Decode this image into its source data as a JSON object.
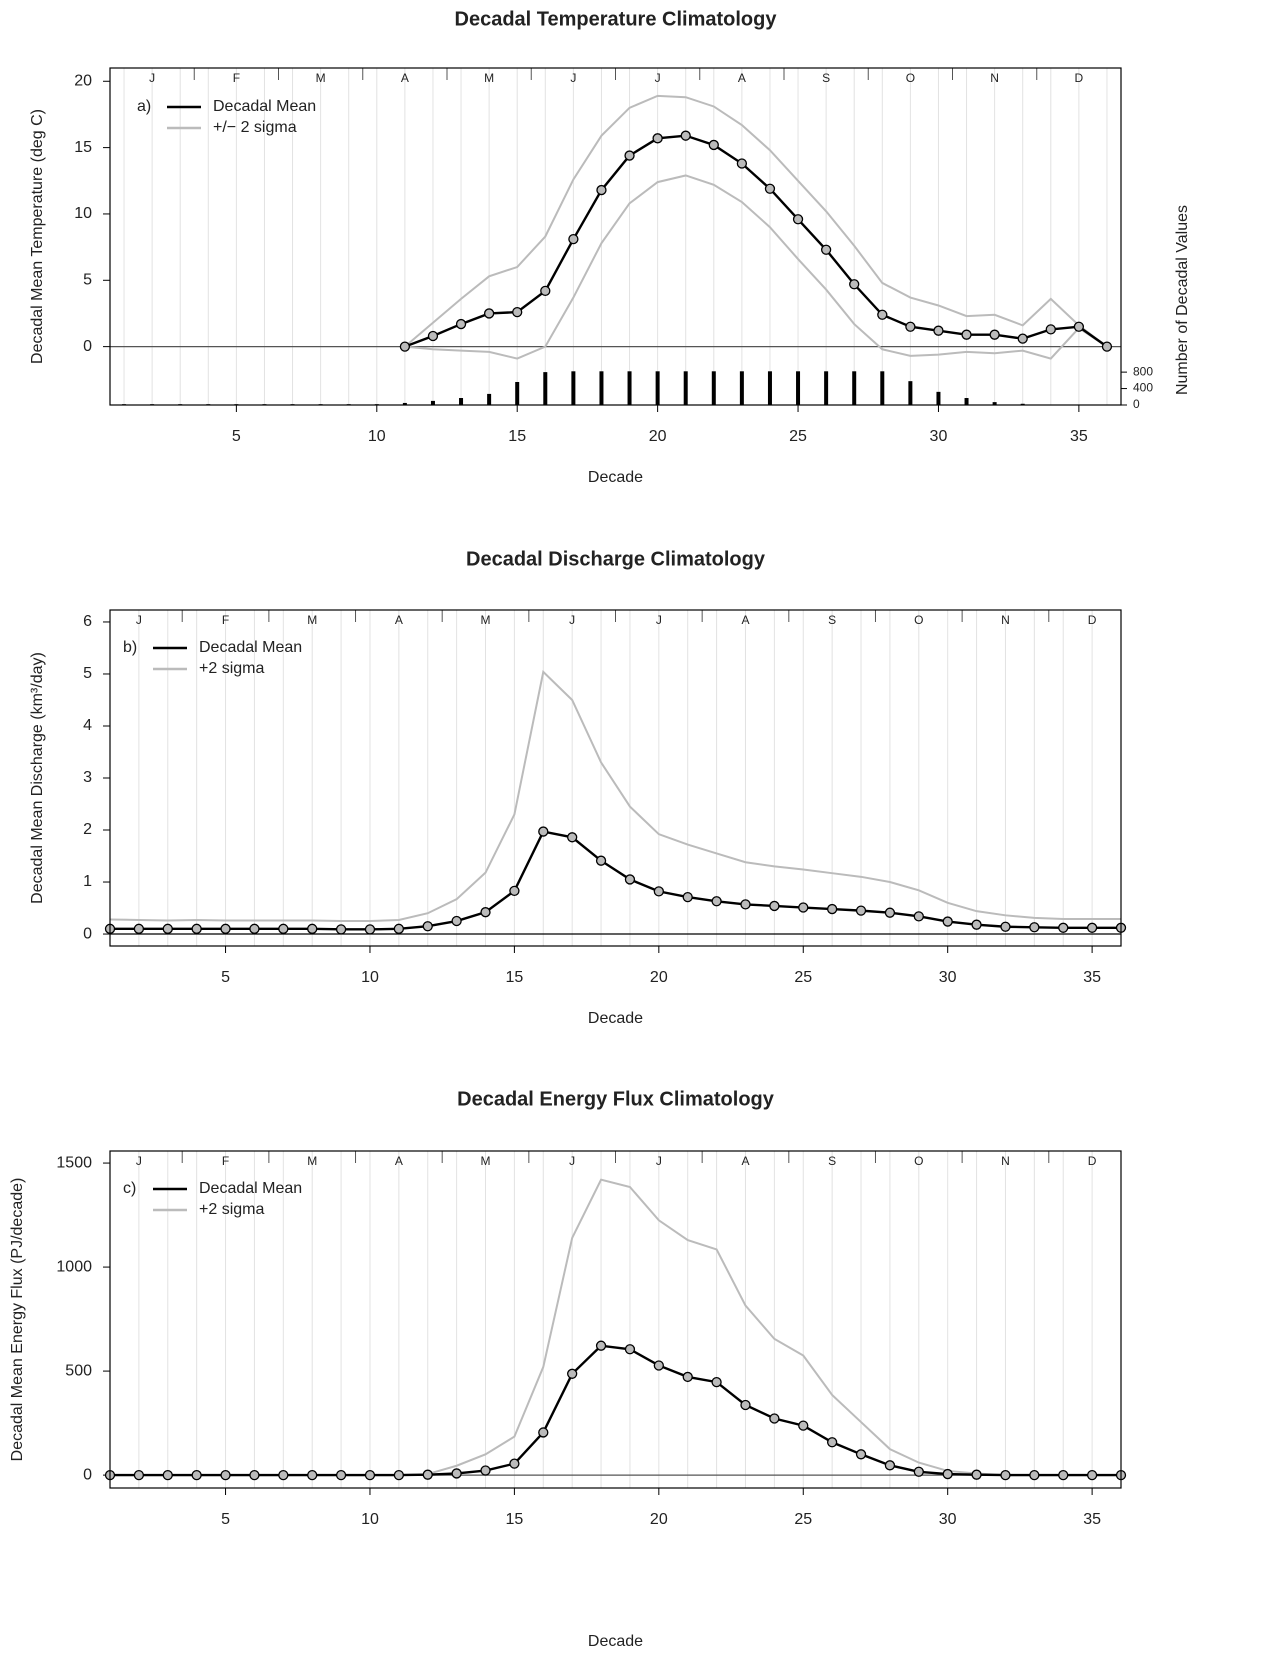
{
  "chart_data": [
    {
      "type": "line",
      "title": "Decadal Temperature Climatology",
      "panel_label": "a)",
      "xlabel": "Decade",
      "ylabel": "Decadal Mean Temperature (deg C)",
      "y2label": "Number of Decadal Values",
      "months": [
        "J",
        "F",
        "M",
        "A",
        "M",
        "J",
        "J",
        "A",
        "S",
        "O",
        "N",
        "D"
      ],
      "x": [
        1,
        2,
        3,
        4,
        5,
        6,
        7,
        8,
        9,
        10,
        11,
        12,
        13,
        14,
        15,
        16,
        17,
        18,
        19,
        20,
        21,
        22,
        23,
        24,
        25,
        26,
        27,
        28,
        29,
        30,
        31,
        32,
        33,
        34,
        35,
        36
      ],
      "xlim": [
        0.5,
        36.5
      ],
      "xticks": [
        5,
        10,
        15,
        20,
        25,
        30,
        35
      ],
      "ylim": [
        -4.4,
        21
      ],
      "yticks": [
        0,
        5,
        10,
        15,
        20
      ],
      "hline": 0,
      "y2lim": [
        0,
        8200
      ],
      "y2ticks": [
        0,
        400,
        800
      ],
      "counts": [
        20,
        20,
        20,
        20,
        20,
        20,
        20,
        20,
        20,
        20,
        50,
        100,
        170,
        270,
        560,
        800,
        820,
        820,
        820,
        820,
        820,
        820,
        820,
        820,
        820,
        820,
        820,
        820,
        580,
        320,
        170,
        70,
        30,
        null,
        null,
        null
      ],
      "series": [
        {
          "name": "Decadal Mean",
          "color": "#000000",
          "markers": true,
          "values": [
            null,
            null,
            null,
            null,
            null,
            null,
            null,
            null,
            null,
            null,
            0.0,
            0.8,
            1.7,
            2.5,
            2.6,
            4.2,
            8.1,
            11.8,
            14.4,
            15.7,
            15.9,
            15.2,
            13.8,
            11.9,
            9.6,
            7.3,
            4.7,
            2.4,
            1.5,
            1.2,
            0.9,
            0.9,
            0.6,
            1.3,
            1.5,
            0.0
          ]
        },
        {
          "name": "+/− 2 sigma",
          "color": "#bbbbbb",
          "values": [
            null,
            null,
            null,
            null,
            null,
            null,
            null,
            null,
            null,
            null,
            0.0,
            1.8,
            3.6,
            5.3,
            6.0,
            8.3,
            12.6,
            15.9,
            18.0,
            18.9,
            18.8,
            18.1,
            16.7,
            14.8,
            12.5,
            10.2,
            7.6,
            4.8,
            3.7,
            3.1,
            2.3,
            2.4,
            1.6,
            3.6,
            1.6,
            0.0
          ],
          "lower": [
            null,
            null,
            null,
            null,
            null,
            null,
            null,
            null,
            null,
            null,
            0.0,
            -0.2,
            -0.3,
            -0.4,
            -0.9,
            0.0,
            3.7,
            7.8,
            10.8,
            12.4,
            12.9,
            12.2,
            10.9,
            9.0,
            6.6,
            4.3,
            1.7,
            -0.2,
            -0.7,
            -0.6,
            -0.4,
            -0.5,
            -0.3,
            -0.9,
            1.4,
            0.0
          ]
        }
      ]
    },
    {
      "type": "line",
      "title": "Decadal Discharge Climatology",
      "panel_label": "b)",
      "xlabel": "Decade",
      "ylabel": "Decadal Mean Discharge (km³/day)",
      "months": [
        "J",
        "F",
        "M",
        "A",
        "M",
        "J",
        "J",
        "A",
        "S",
        "O",
        "N",
        "D"
      ],
      "x": [
        1,
        2,
        3,
        4,
        5,
        6,
        7,
        8,
        9,
        10,
        11,
        12,
        13,
        14,
        15,
        16,
        17,
        18,
        19,
        20,
        21,
        22,
        23,
        24,
        25,
        26,
        27,
        28,
        29,
        30,
        31,
        32,
        33,
        34,
        35,
        36
      ],
      "xlim": [
        1,
        36
      ],
      "xticks": [
        5,
        10,
        15,
        20,
        25,
        30,
        35
      ],
      "ylim": [
        -0.23,
        6.23
      ],
      "yticks": [
        0,
        1,
        2,
        3,
        4,
        5,
        6
      ],
      "hline": 0,
      "series": [
        {
          "name": "Decadal Mean",
          "color": "#000000",
          "markers": true,
          "values": [
            0.1,
            0.1,
            0.1,
            0.1,
            0.1,
            0.1,
            0.1,
            0.1,
            0.09,
            0.09,
            0.1,
            0.15,
            0.25,
            0.42,
            0.83,
            1.97,
            1.86,
            1.41,
            1.05,
            0.82,
            0.71,
            0.63,
            0.57,
            0.54,
            0.51,
            0.48,
            0.45,
            0.41,
            0.34,
            0.24,
            0.18,
            0.14,
            0.13,
            0.12,
            0.12,
            0.12
          ]
        },
        {
          "name": "+2 sigma",
          "color": "#bbbbbb",
          "values": [
            0.28,
            0.27,
            0.26,
            0.27,
            0.26,
            0.26,
            0.26,
            0.26,
            0.25,
            0.25,
            0.27,
            0.4,
            0.67,
            1.18,
            2.3,
            5.04,
            4.5,
            3.3,
            2.45,
            1.92,
            1.72,
            1.55,
            1.38,
            1.3,
            1.24,
            1.17,
            1.1,
            1.0,
            0.84,
            0.6,
            0.44,
            0.36,
            0.31,
            0.29,
            0.29,
            0.29
          ]
        }
      ]
    },
    {
      "type": "line",
      "title": "Decadal Energy Flux Climatology",
      "panel_label": "c)",
      "xlabel": "Decade",
      "ylabel": "Decadal Mean Energy Flux (PJ/decade)",
      "months": [
        "J",
        "F",
        "M",
        "A",
        "M",
        "J",
        "J",
        "A",
        "S",
        "O",
        "N",
        "D"
      ],
      "x": [
        1,
        2,
        3,
        4,
        5,
        6,
        7,
        8,
        9,
        10,
        11,
        12,
        13,
        14,
        15,
        16,
        17,
        18,
        19,
        20,
        21,
        22,
        23,
        24,
        25,
        26,
        27,
        28,
        29,
        30,
        31,
        32,
        33,
        34,
        35,
        36
      ],
      "xlim": [
        1,
        36
      ],
      "xticks": [
        5,
        10,
        15,
        20,
        25,
        30,
        35
      ],
      "ylim": [
        -62,
        1558
      ],
      "yticks": [
        0,
        500,
        1000,
        1500
      ],
      "hline": 0,
      "series": [
        {
          "name": "Decadal Mean",
          "color": "#000000",
          "markers": true,
          "values": [
            0,
            0,
            0,
            0,
            0,
            0,
            0,
            0,
            0,
            0,
            0,
            2,
            8,
            22,
            55,
            205,
            487,
            622,
            605,
            527,
            472,
            447,
            337,
            272,
            238,
            158,
            100,
            47,
            16,
            5,
            2,
            0,
            0,
            0,
            0,
            0
          ]
        },
        {
          "name": "+2 sigma",
          "color": "#bbbbbb",
          "values": [
            0,
            0,
            0,
            0,
            0,
            0,
            0,
            0,
            0,
            0,
            0,
            5,
            45,
            100,
            185,
            520,
            1140,
            1420,
            1385,
            1225,
            1130,
            1085,
            815,
            655,
            575,
            385,
            255,
            125,
            60,
            20,
            8,
            0,
            0,
            0,
            0,
            0
          ]
        }
      ]
    }
  ]
}
